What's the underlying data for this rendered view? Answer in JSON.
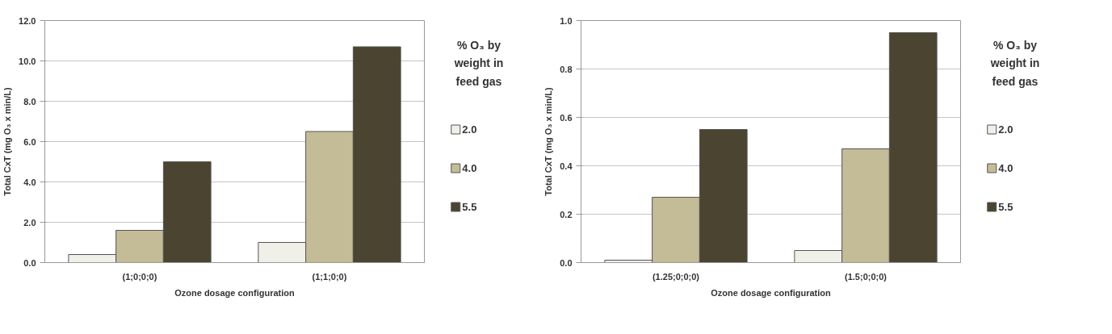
{
  "chart_data": [
    {
      "type": "bar",
      "ylabel": "Total CxT (mg O₃ x min/L)",
      "xlabel": "Ozone dosage configuration",
      "legend_title": "% O₃ by weight in feed gas",
      "categories": [
        "(1;0;0;0)",
        "(1;1;0;0)"
      ],
      "series": [
        {
          "name": "2.0",
          "color": "#f0efe8",
          "values": [
            0.4,
            1.0
          ]
        },
        {
          "name": "4.0",
          "color": "#c4bc97",
          "values": [
            1.6,
            6.5
          ]
        },
        {
          "name": "5.5",
          "color": "#4a4430",
          "values": [
            5.0,
            10.7
          ]
        }
      ],
      "ylim": [
        0,
        12
      ],
      "yticks": [
        {
          "value": 0,
          "label": "0.0"
        },
        {
          "value": 2,
          "label": "2.0"
        },
        {
          "value": 4,
          "label": "4.0"
        },
        {
          "value": 6,
          "label": "6.0"
        },
        {
          "value": 8,
          "label": "8.0"
        },
        {
          "value": 10,
          "label": "10.0"
        },
        {
          "value": 12,
          "label": "12.0"
        }
      ],
      "grid": "y",
      "legend": "right"
    },
    {
      "type": "bar",
      "ylabel": "Total CxT (mg O₃ x min/L)",
      "xlabel": "Ozone dosage configuration",
      "legend_title": "% O₃ by weight in feed gas",
      "categories": [
        "(1.25;0;0;0)",
        "(1.5;0;0;0)"
      ],
      "series": [
        {
          "name": "2.0",
          "color": "#f0efe8",
          "values": [
            0.01,
            0.05
          ]
        },
        {
          "name": "4.0",
          "color": "#c4bc97",
          "values": [
            0.27,
            0.47
          ]
        },
        {
          "name": "5.5",
          "color": "#4a4430",
          "values": [
            0.55,
            0.95
          ]
        }
      ],
      "ylim": [
        0,
        1
      ],
      "yticks": [
        {
          "value": 0,
          "label": "0.0"
        },
        {
          "value": 0.2,
          "label": "0.2"
        },
        {
          "value": 0.4,
          "label": "0.4"
        },
        {
          "value": 0.6,
          "label": "0.6"
        },
        {
          "value": 0.8,
          "label": "0.8"
        },
        {
          "value": 1,
          "label": "1.0"
        }
      ],
      "grid": "y",
      "legend": "right"
    }
  ]
}
